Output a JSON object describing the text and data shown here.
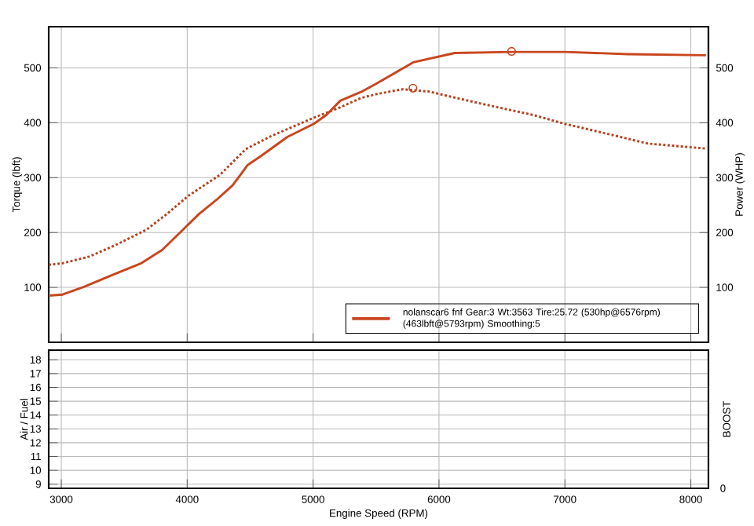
{
  "chart_data": [
    {
      "type": "line",
      "ylabel": "Torque (lbft)",
      "y2label": "Power (WHP)",
      "xlim": [
        2900,
        8140
      ],
      "xticks": [
        3000,
        4000,
        5000,
        6000,
        7000,
        8000
      ],
      "ylim": [
        0,
        575
      ],
      "yticks": [
        100,
        200,
        300,
        400,
        500
      ],
      "y2lim": [
        0,
        575
      ],
      "y2ticks": [
        100,
        200,
        300,
        400,
        500
      ],
      "tick_labels": "y",
      "grid": true,
      "legend": "bottom right",
      "series": [
        {
          "name": "nolanscar6 fnf Gear:3 Wt:3563 Tire:25.72 (530hp@6576rpm) (463lbft@5793rpm) Smoothing:5",
          "color": "#c8461e",
          "axis": "y2",
          "line_style": "solid",
          "x": [
            2900,
            3010,
            3180,
            3430,
            3635,
            3800,
            3970,
            4095,
            4235,
            4360,
            4420,
            4480,
            4590,
            4795,
            5005,
            5105,
            5215,
            5380,
            5500,
            5795,
            6125,
            6580,
            7000,
            7500,
            8120
          ],
          "values": [
            85,
            87,
            101,
            125,
            144,
            168,
            206,
            234,
            260,
            286,
            304,
            323,
            340,
            374,
            398,
            414,
            440,
            456,
            471,
            510,
            527,
            529,
            529,
            525,
            523
          ]
        },
        {
          "color": "#b5401c",
          "line_style": "dotted",
          "x": [
            2900,
            3010,
            3220,
            3430,
            3675,
            3840,
            4010,
            4260,
            4465,
            4670,
            5005,
            5215,
            5380,
            5500,
            5710,
            5915,
            6330,
            6750,
            7000,
            7370,
            7660,
            8120
          ],
          "values": [
            141,
            144,
            156,
            177,
            205,
            234,
            267,
            305,
            352,
            376,
            409,
            428,
            445,
            452,
            461,
            457,
            435,
            414,
            398,
            378,
            362,
            353
          ]
        },
        {
          "type": "scatter",
          "marker": "circle",
          "color": "#c8461e",
          "x": [
            6576,
            5793
          ],
          "values": [
            530,
            463
          ]
        }
      ]
    },
    {
      "type": "line",
      "xlabel": "Engine Speed (RPM)",
      "ylabel": "Air / Fuel",
      "y2label": "BOOST",
      "xlim": [
        2900,
        8140
      ],
      "xticks": [
        3000,
        4000,
        5000,
        6000,
        7000,
        8000
      ],
      "ylim": [
        8.7,
        18.7
      ],
      "yticks": [
        9,
        10,
        11,
        12,
        13,
        14,
        15,
        16,
        17,
        18
      ],
      "annotations": [
        "0"
      ],
      "grid": true
    }
  ]
}
